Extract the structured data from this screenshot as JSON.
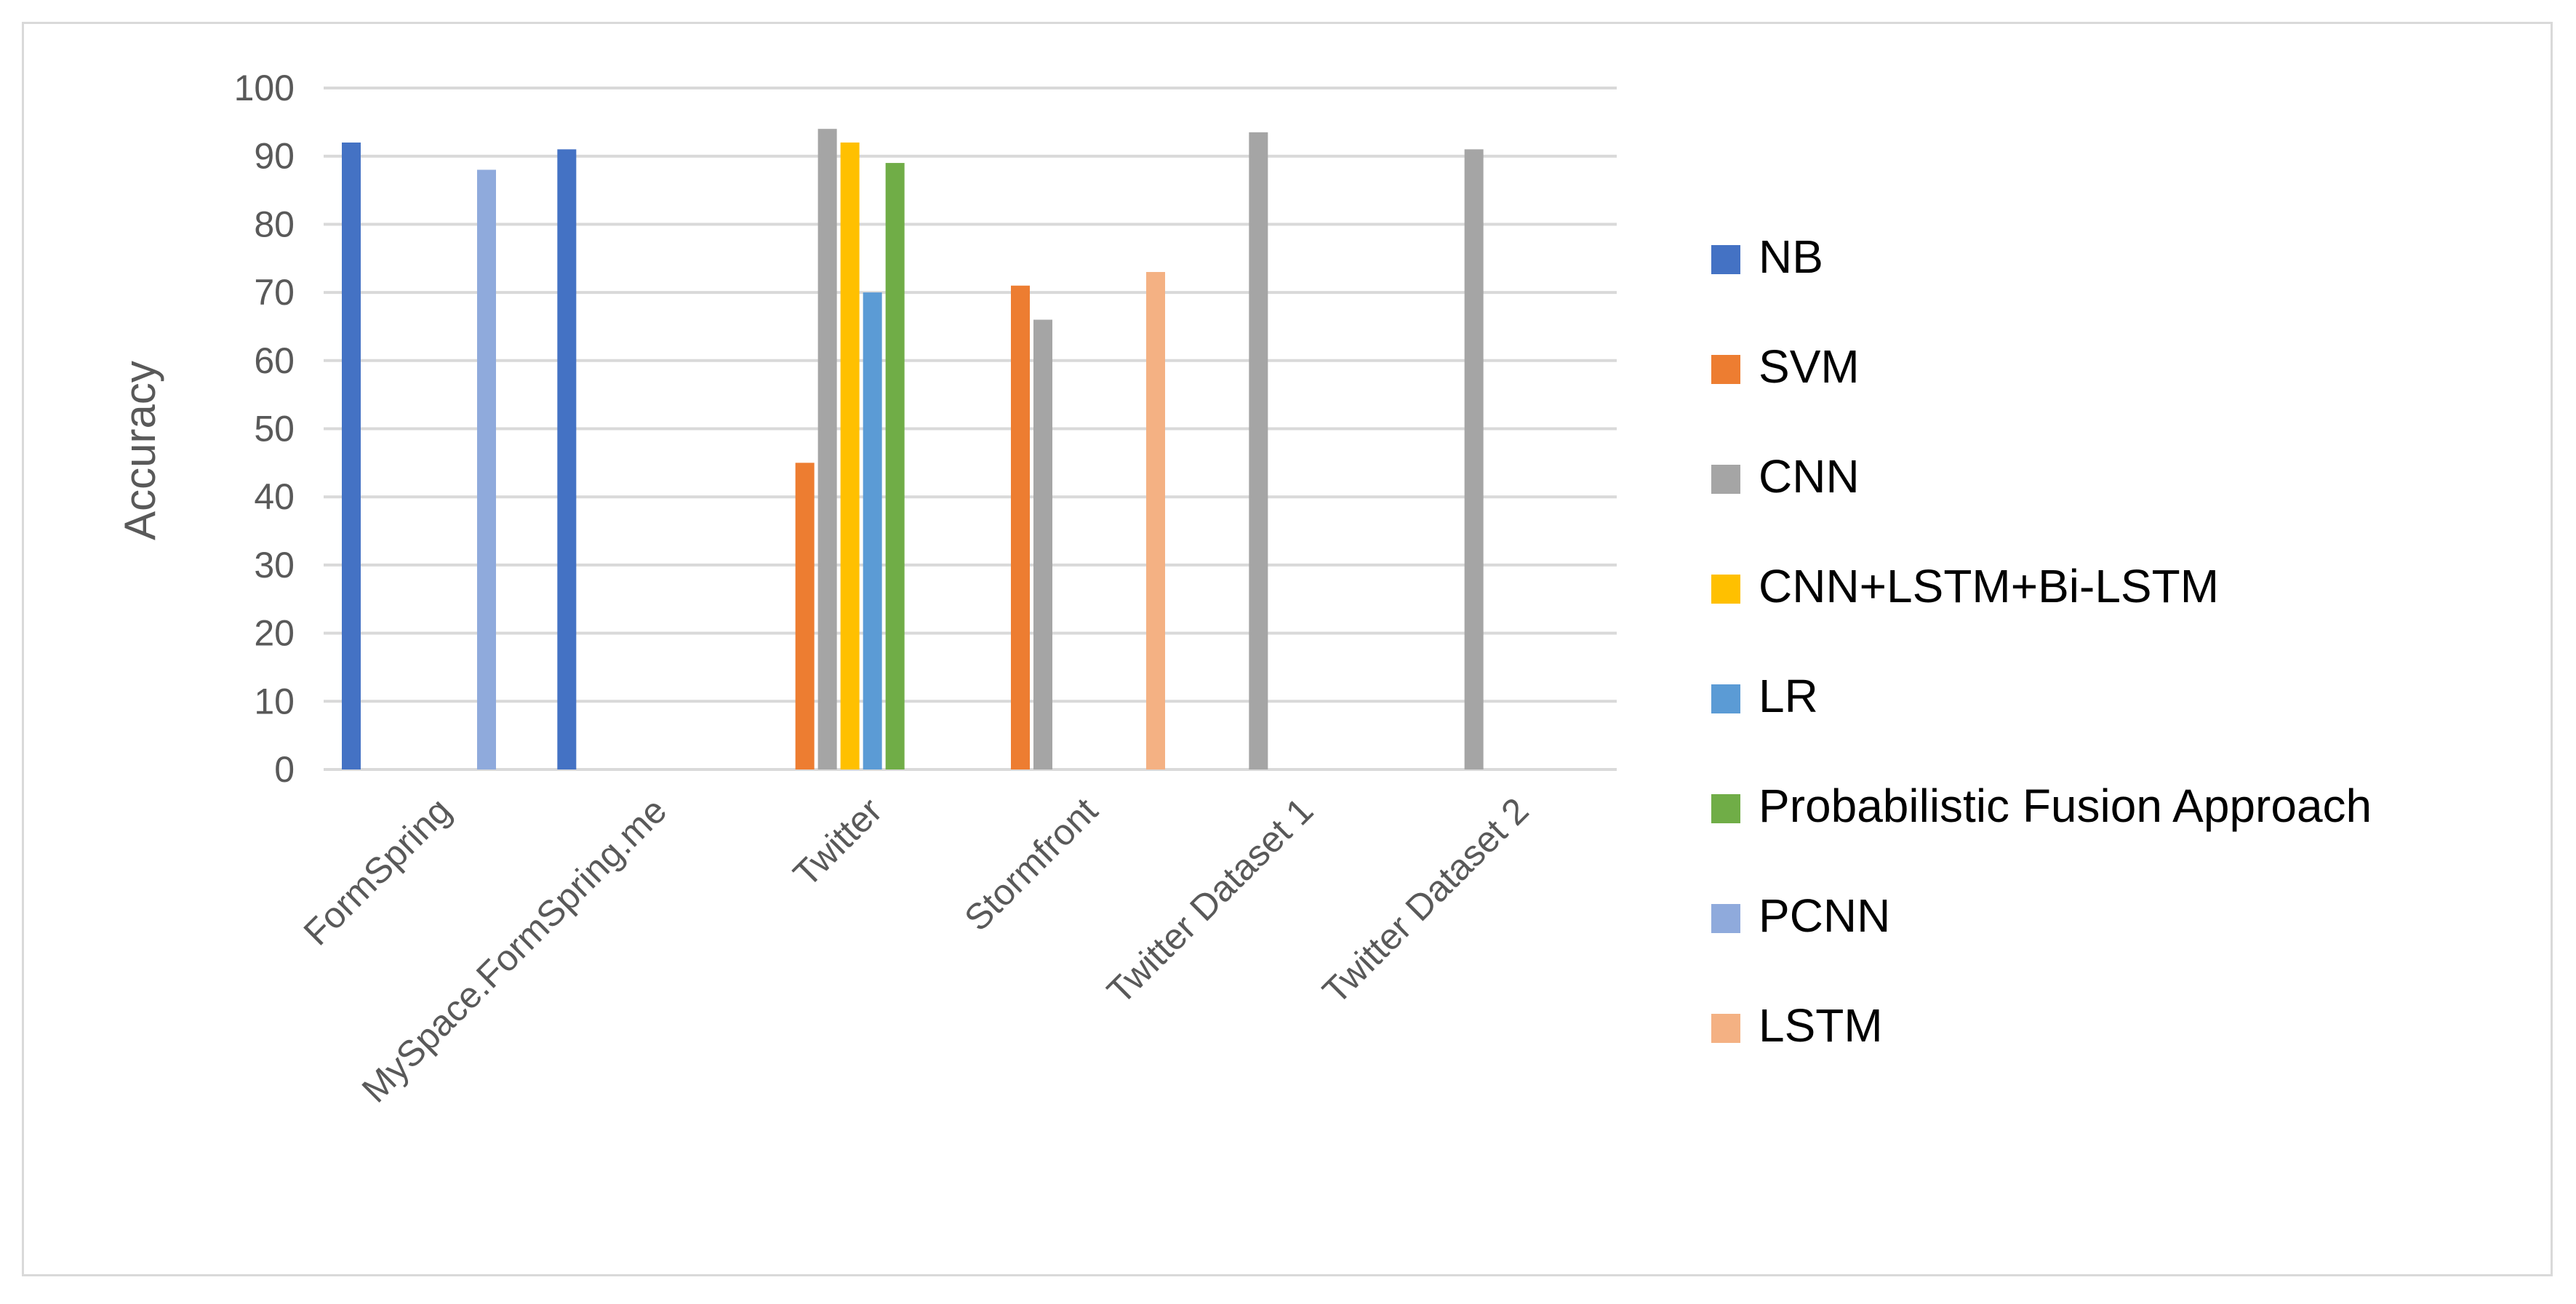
{
  "chart_data": {
    "type": "bar",
    "title": "",
    "xlabel": "",
    "ylabel": "Accuracy",
    "ylim": [
      0,
      100
    ],
    "yticks": [
      0,
      10,
      20,
      30,
      40,
      50,
      60,
      70,
      80,
      90,
      100
    ],
    "grid": true,
    "legend_position": "right",
    "categories": [
      "FormSpring",
      "MySpace.FormSpring.me",
      "Twitter",
      "Stormfront",
      "Twitter Dataset 1",
      "Twitter Dataset 2"
    ],
    "series": [
      {
        "name": "NB",
        "color": "#4472c4",
        "values": [
          92,
          91,
          null,
          null,
          null,
          null
        ]
      },
      {
        "name": "SVM",
        "color": "#ed7d31",
        "values": [
          null,
          null,
          45,
          71,
          null,
          null
        ]
      },
      {
        "name": "CNN",
        "color": "#a5a5a5",
        "values": [
          null,
          null,
          94,
          66,
          93.5,
          91
        ]
      },
      {
        "name": "CNN+LSTM+Bi-LSTM",
        "color": "#ffc000",
        "values": [
          null,
          null,
          92,
          null,
          null,
          null
        ]
      },
      {
        "name": "LR",
        "color": "#5b9bd5",
        "values": [
          null,
          null,
          70,
          null,
          null,
          null
        ]
      },
      {
        "name": "Probabilistic Fusion Approach",
        "color": "#70ad47",
        "values": [
          null,
          null,
          89,
          null,
          null,
          null
        ]
      },
      {
        "name": "PCNN",
        "color": "#8faadc",
        "values": [
          88,
          null,
          null,
          null,
          null,
          null
        ]
      },
      {
        "name": "LSTM",
        "color": "#f4b183",
        "values": [
          null,
          null,
          null,
          73,
          null,
          null
        ]
      }
    ]
  }
}
